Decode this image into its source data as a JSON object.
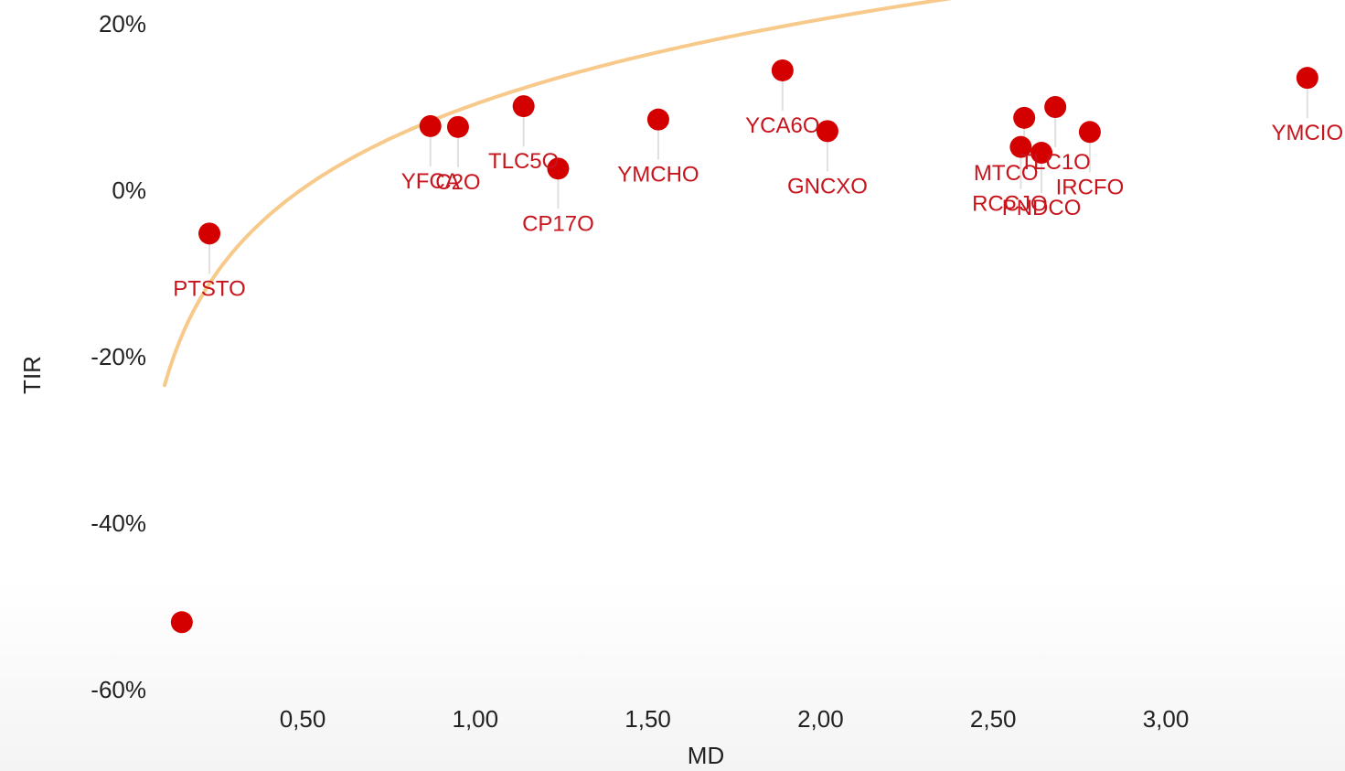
{
  "chart_data": {
    "type": "scatter",
    "title": "",
    "xlabel": "MD",
    "ylabel": "TIR",
    "xlim": [
      0.1,
      3.45
    ],
    "ylim": [
      -60,
      20
    ],
    "x_ticks": [
      0.5,
      1.0,
      1.5,
      2.0,
      2.5,
      3.0
    ],
    "x_tick_labels": [
      "0,50",
      "1,00",
      "1,50",
      "2,00",
      "2,50",
      "3,00"
    ],
    "y_ticks": [
      20,
      0,
      -20,
      -40,
      -60
    ],
    "y_tick_labels": [
      "20%",
      "0%",
      "-20%",
      "-40%",
      "-60%"
    ],
    "grid": false,
    "legend": "none",
    "colors": {
      "points": "#d40000",
      "labels": "#c8141c",
      "trendline": "#f7c98a",
      "leaders": "#e0e0e0"
    },
    "series": [
      {
        "points": [
          {
            "x": 0.23,
            "y": -5.2,
            "label": "PTSTO"
          },
          {
            "x": 0.15,
            "y": -51.9,
            "label": ""
          },
          {
            "x": 0.87,
            "y": 7.7,
            "label": "YFCA"
          },
          {
            "x": 0.95,
            "y": 7.6,
            "label": "C2O"
          },
          {
            "x": 1.14,
            "y": 10.1,
            "label": "TLC5O"
          },
          {
            "x": 1.24,
            "y": 2.6,
            "label": "CP17O"
          },
          {
            "x": 1.53,
            "y": 8.5,
            "label": "YMCHO"
          },
          {
            "x": 1.89,
            "y": 14.4,
            "label": "YCA6O"
          },
          {
            "x": 2.02,
            "y": 7.1,
            "label": "GNCXO"
          },
          {
            "x": 2.59,
            "y": 8.7,
            "label": "MTCO"
          },
          {
            "x": 2.58,
            "y": 5.2,
            "label": "RCCJO"
          },
          {
            "x": 2.64,
            "y": 4.5,
            "label": "PNDCO"
          },
          {
            "x": 2.68,
            "y": 10.0,
            "label": "TLC1O"
          },
          {
            "x": 2.78,
            "y": 7.0,
            "label": "IRCFO"
          },
          {
            "x": 3.41,
            "y": 13.5,
            "label": "YMCIO"
          }
        ]
      }
    ],
    "trendline": {
      "type": "logarithmic",
      "a": 10.35,
      "b": 14.67,
      "x_range": [
        0.1,
        3.45
      ]
    }
  }
}
